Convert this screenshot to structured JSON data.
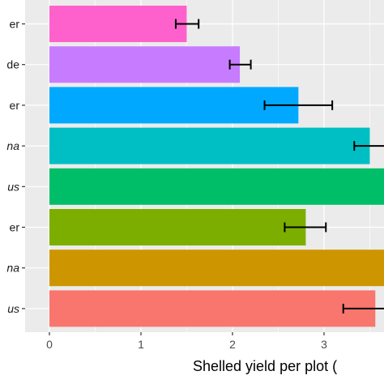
{
  "chart_data": {
    "type": "bar",
    "orientation": "horizontal",
    "xlabel": "Shelled yield per plot (",
    "ylabel": "",
    "xlim": [
      -0.25,
      3.67
    ],
    "x_ticks": [
      0,
      1,
      2,
      3
    ],
    "x_tick_labels": [
      "0",
      "1",
      "2",
      "3"
    ],
    "grid": true,
    "legend": "none",
    "panel_background": "#ebebeb",
    "grid_major_color": "#ffffff",
    "error_bar_color": "#000000",
    "categories": [
      {
        "label": "er",
        "italic": false,
        "value": 1.5,
        "err_low": 1.38,
        "err_high": 1.63,
        "color": "#ff61cc"
      },
      {
        "label": "de",
        "italic": false,
        "value": 2.08,
        "err_low": 1.97,
        "err_high": 2.2,
        "color": "#c77cff"
      },
      {
        "label": "er",
        "italic": false,
        "value": 2.72,
        "err_low": 2.35,
        "err_high": 3.09,
        "color": "#00a9ff"
      },
      {
        "label": "na",
        "italic": true,
        "value": 3.5,
        "err_low": 3.33,
        "err_high": 3.75,
        "color": "#00bfc4"
      },
      {
        "label": "us",
        "italic": true,
        "value": 3.75,
        "err_low": null,
        "err_high": null,
        "color": "#00be67"
      },
      {
        "label": "er",
        "italic": false,
        "value": 2.8,
        "err_low": 2.57,
        "err_high": 3.02,
        "color": "#7cae00"
      },
      {
        "label": "na",
        "italic": true,
        "value": 3.75,
        "err_low": null,
        "err_high": null,
        "color": "#cd9600"
      },
      {
        "label": "us",
        "italic": true,
        "value": 3.56,
        "err_low": 3.21,
        "err_high": 3.75,
        "color": "#f8766d"
      }
    ]
  }
}
